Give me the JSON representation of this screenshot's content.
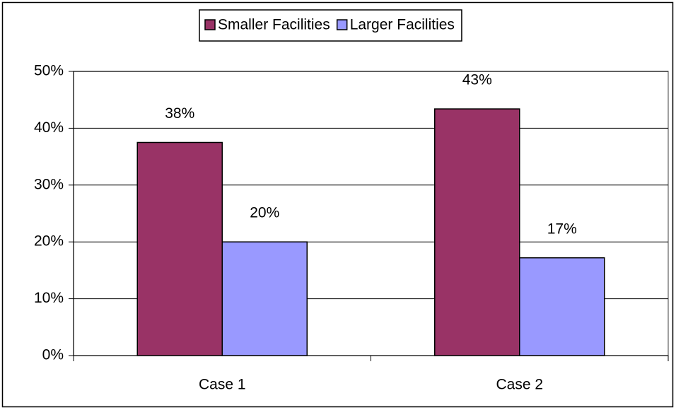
{
  "chart_data": {
    "type": "bar",
    "categories": [
      "Case 1",
      "Case 2"
    ],
    "series": [
      {
        "name": "Smaller Facilities",
        "color": "#993366",
        "values": [
          37.5,
          43.4
        ],
        "value_labels": [
          "38%",
          "43%"
        ]
      },
      {
        "name": "Larger Facilities",
        "color": "#9999ff",
        "values": [
          20,
          17.2
        ],
        "value_labels": [
          "20%",
          "17%"
        ]
      }
    ],
    "ylim": [
      0,
      50
    ],
    "yticks": [
      {
        "value": 0,
        "label": "0%"
      },
      {
        "value": 10,
        "label": "10%"
      },
      {
        "value": 20,
        "label": "20%"
      },
      {
        "value": 30,
        "label": "30%"
      },
      {
        "value": 40,
        "label": "40%"
      },
      {
        "value": 50,
        "label": "50%"
      }
    ],
    "grid": true,
    "legend": "top"
  }
}
